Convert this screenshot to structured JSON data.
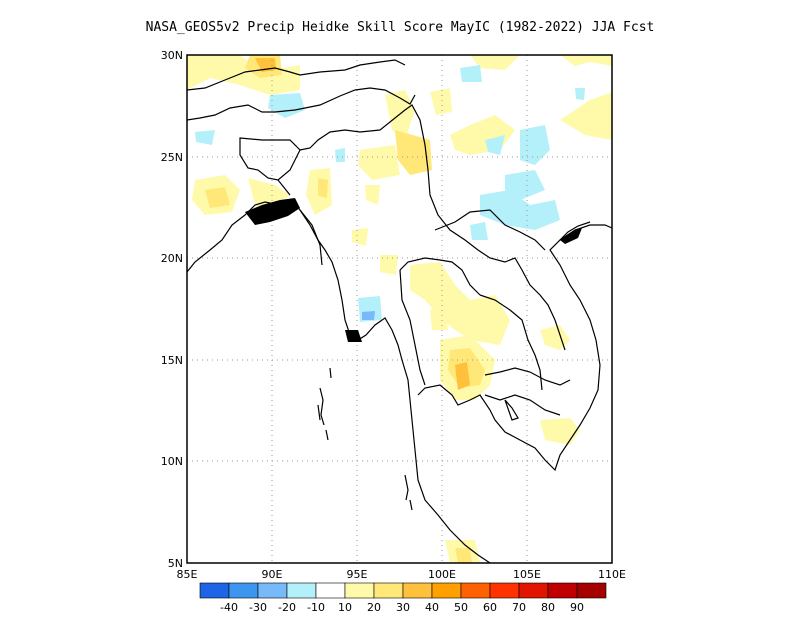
{
  "title": "NASA_GEOS5v2 Precip Heidke Skill Score MayIC (1982-2022) JJA Fcst",
  "map": {
    "lon_min": 85,
    "lon_max": 110,
    "lat_min": 5,
    "lat_max": 30,
    "x_ticks": [
      "85E",
      "90E",
      "95E",
      "100E",
      "105E",
      "110E"
    ],
    "y_ticks": [
      "5N",
      "10N",
      "15N",
      "20N",
      "25N",
      "30N"
    ],
    "gridlines": "dotted",
    "coastline_color": "#000000"
  },
  "colorbar": {
    "colors": [
      "#1e64e6",
      "#3c96f0",
      "#78b9fa",
      "#b4f0fa",
      "#ffffff",
      "#fffaaa",
      "#ffe878",
      "#ffc03c",
      "#ffa000",
      "#ff6000",
      "#ff3200",
      "#e11400",
      "#c00000",
      "#a50000"
    ],
    "labels": [
      "-40",
      "-30",
      "-20",
      "-10",
      "10",
      "20",
      "30",
      "40",
      "50",
      "60",
      "70",
      "80",
      "90"
    ]
  }
}
